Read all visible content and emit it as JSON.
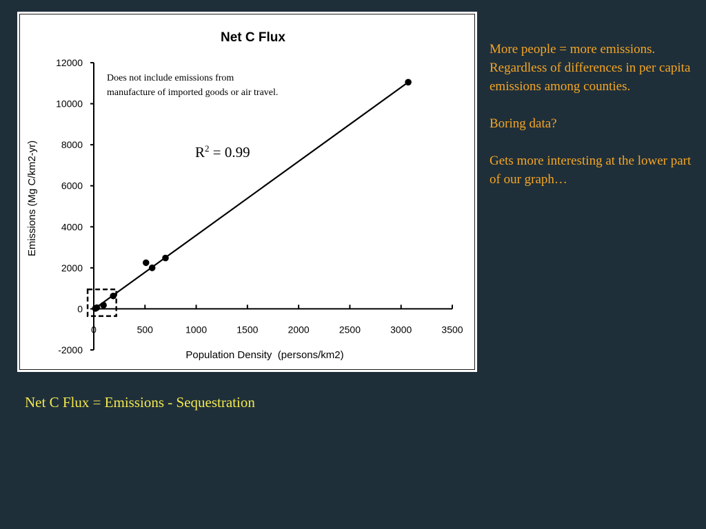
{
  "chart_data": {
    "type": "scatter",
    "title": "Net C Flux",
    "xlabel": "Population Density  (persons/km2)",
    "ylabel": "Emissions (Mg C/km2-yr)",
    "xlim": [
      0,
      3500
    ],
    "ylim": [
      -2000,
      12000
    ],
    "xticks": [
      0,
      500,
      1000,
      1500,
      2000,
      2500,
      3000,
      3500
    ],
    "yticks": [
      -2000,
      0,
      2000,
      4000,
      6000,
      8000,
      10000,
      12000
    ],
    "grid": false,
    "legend": "none",
    "series": [
      {
        "x": [
          15,
          30,
          95,
          190,
          510,
          570,
          700,
          3070
        ],
        "y": [
          20,
          60,
          180,
          630,
          2250,
          2000,
          2480,
          11050
        ]
      }
    ],
    "trendline": {
      "x": [
        0,
        3070
      ],
      "y": [
        -20,
        11050
      ]
    },
    "annotations": {
      "note_line1": "Does not include emissions from",
      "note_line2": "manufacture of imported goods or air travel.",
      "r2_prefix": "R",
      "r2_sup": "2",
      "r2_value": " = 0.99"
    },
    "highlight_box": {
      "x": [
        -60,
        220
      ],
      "y": [
        -350,
        950
      ]
    }
  },
  "side_notes": {
    "para1": "More people = more emissions. Regardless of differences in per capita emissions among counties.",
    "para2": "Boring data?",
    "para3": "Gets more interesting at the lower part of our graph…"
  },
  "caption": "Net C Flux = Emissions - Sequestration",
  "colors": {
    "background": "#1f2f3a",
    "side_text": "#f5a623",
    "caption_text": "#f2e94e",
    "chart_ink": "#000000"
  }
}
